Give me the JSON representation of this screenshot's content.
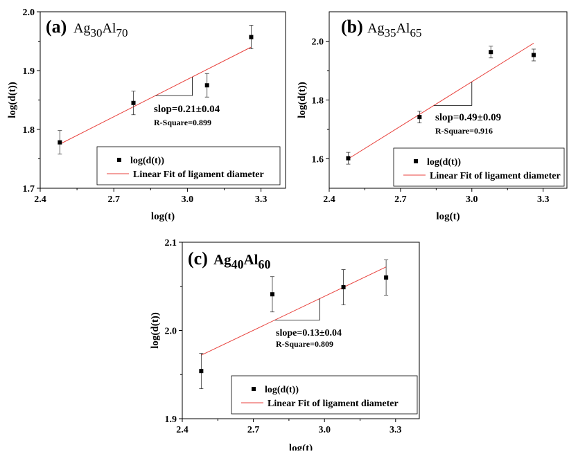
{
  "chart_data": [
    {
      "type": "scatter",
      "panel_label": "(a)",
      "title": {
        "base1": "Ag",
        "sub1": "30",
        "base2": "Al",
        "sub2": "70"
      },
      "xlabel": "log(t)",
      "ylabel": "log(d(t))",
      "xlim": [
        2.4,
        3.4
      ],
      "ylim": [
        1.7,
        2.0
      ],
      "xticks": [
        2.4,
        2.7,
        3.0,
        3.3
      ],
      "xtick_labels": [
        "2.4",
        "2.7",
        "3.0",
        "3.3"
      ],
      "yticks": [
        1.7,
        1.8,
        1.9,
        2.0
      ],
      "ytick_labels": [
        "1.7",
        "1.8",
        "1.9",
        "2.0"
      ],
      "points": [
        {
          "x": 2.48,
          "y": 1.778,
          "err": 0.02
        },
        {
          "x": 2.78,
          "y": 1.845,
          "err": 0.02
        },
        {
          "x": 3.08,
          "y": 1.875,
          "err": 0.02
        },
        {
          "x": 3.26,
          "y": 1.957,
          "err": 0.02
        }
      ],
      "fit": {
        "x": [
          2.48,
          3.26
        ],
        "y": [
          1.775,
          1.94
        ]
      },
      "slope_triangle": {
        "x1": 2.87,
        "x2": 3.02
      },
      "slope_text": "slop=0.21±0.04",
      "rsquare_text": "R-Square=0.899",
      "legend": {
        "scatter_label": "log(d(t))",
        "line_label": "Linear Fit of ligament diameter"
      },
      "colors": {
        "fit": "#e8413c",
        "marker": "#000000"
      }
    },
    {
      "type": "scatter",
      "panel_label": "(b)",
      "title": {
        "base1": "Ag",
        "sub1": "35",
        "base2": "Al",
        "sub2": "65"
      },
      "xlabel": "log(t)",
      "ylabel": "log(d(t))",
      "xlim": [
        2.4,
        3.4
      ],
      "ylim": [
        1.5,
        2.1
      ],
      "xticks": [
        2.4,
        2.7,
        3.0,
        3.3
      ],
      "xtick_labels": [
        "2.4",
        "2.7",
        "3.0",
        "3.3"
      ],
      "yticks": [
        1.6,
        1.8,
        2.0
      ],
      "ytick_labels": [
        "1.6",
        "1.8",
        "2.0"
      ],
      "points": [
        {
          "x": 2.48,
          "y": 1.602,
          "err": 0.02
        },
        {
          "x": 2.78,
          "y": 1.742,
          "err": 0.02
        },
        {
          "x": 3.08,
          "y": 1.963,
          "err": 0.02
        },
        {
          "x": 3.26,
          "y": 1.953,
          "err": 0.02
        }
      ],
      "fit": {
        "x": [
          2.48,
          3.26
        ],
        "y": [
          1.6,
          1.993
        ]
      },
      "slope_triangle": {
        "x1": 2.84,
        "x2": 3.0
      },
      "slope_text": "slop=0.49±0.09",
      "rsquare_text": "R-Square=0.916",
      "legend": {
        "scatter_label": "log(d(t))",
        "line_label": "Linear Fit of ligament diameter"
      },
      "colors": {
        "fit": "#e8413c",
        "marker": "#000000"
      }
    },
    {
      "type": "scatter",
      "panel_label": "(c)",
      "title": {
        "base1": "Ag",
        "sub1": "40",
        "base2": "Al",
        "sub2": "60"
      },
      "xlabel": "log(t)",
      "ylabel": "log(d(t))",
      "xlim": [
        2.4,
        3.4
      ],
      "ylim": [
        1.9,
        2.1
      ],
      "xticks": [
        2.4,
        2.7,
        3.0,
        3.3
      ],
      "xtick_labels": [
        "2.4",
        "2.7",
        "3.0",
        "3.3"
      ],
      "yticks": [
        1.9,
        2.0,
        2.1
      ],
      "ytick_labels": [
        "1.9",
        "2.0",
        "2.1"
      ],
      "points": [
        {
          "x": 2.48,
          "y": 1.954,
          "err": 0.02
        },
        {
          "x": 2.78,
          "y": 2.041,
          "err": 0.02
        },
        {
          "x": 3.08,
          "y": 2.049,
          "err": 0.02
        },
        {
          "x": 3.26,
          "y": 2.06,
          "err": 0.02
        }
      ],
      "fit": {
        "x": [
          2.48,
          3.26
        ],
        "y": [
          1.972,
          2.072
        ]
      },
      "slope_triangle": {
        "x1": 2.79,
        "x2": 2.98
      },
      "slope_text": "slope=0.13±0.04",
      "rsquare_text": "R-Square=0.809",
      "legend": {
        "scatter_label": "log(d(t))",
        "line_label": "Linear Fit of ligament diameter"
      },
      "colors": {
        "fit": "#e8413c",
        "marker": "#000000"
      }
    }
  ]
}
